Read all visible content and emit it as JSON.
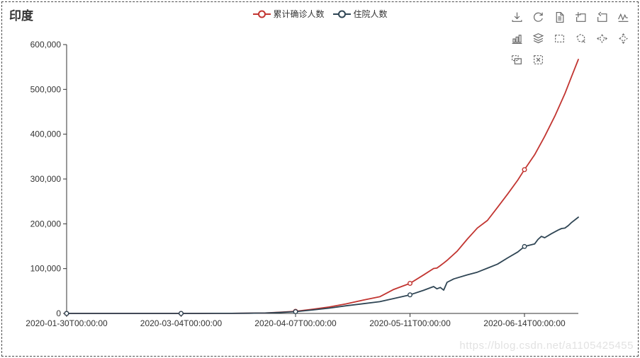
{
  "page": {
    "title": "印度",
    "watermark": "https://blog.csdn.net/a1105425455",
    "background": "#ffffff",
    "border_color": "#4a4a4a",
    "axis_color": "#333333",
    "label_color": "#333333"
  },
  "legend": {
    "items": [
      {
        "id": "confirmed",
        "label": "累计确诊人数",
        "color": "#c23531"
      },
      {
        "id": "hospitalized",
        "label": "住院人数",
        "color": "#2f4554"
      }
    ]
  },
  "toolbox": {
    "icon_color": "#666666",
    "rows": [
      [
        "save-image-icon",
        "restore-icon",
        "data-view-icon",
        "zoom-in-icon",
        "zoom-back-icon",
        "line-chart-icon"
      ],
      [
        "bar-chart-icon",
        "stack-icon",
        "brush-rect-icon",
        "brush-polygon-icon",
        "brush-linex-icon",
        "brush-liney-icon"
      ],
      [
        "brush-keep-icon",
        "brush-clear-icon"
      ]
    ]
  },
  "chart_data": {
    "type": "line",
    "title": "印度",
    "grid": false,
    "legend_position": "top-center",
    "x_axis": {
      "type": "time",
      "start_date": "2020-01-30T00:00:00",
      "tick_labels": [
        "2020-01-30T00:00:00",
        "2020-03-04T00:00:00",
        "2020-04-07T00:00:00",
        "2020-05-11T00:00:00",
        "2020-06-14T00:00:00"
      ],
      "tick_day_offsets": [
        0,
        34,
        68,
        102,
        136
      ],
      "total_days": 152
    },
    "y_axis": {
      "min": 0,
      "max": 600000,
      "interval": 100000,
      "tick_labels": [
        "0",
        "100,000",
        "200,000",
        "300,000",
        "400,000",
        "500,000",
        "600,000"
      ]
    },
    "series": [
      {
        "name": "累计确诊人数",
        "color": "#c23531",
        "marker_days": [
          0,
          34,
          68,
          102,
          136
        ],
        "points": [
          [
            0,
            1
          ],
          [
            10,
            3
          ],
          [
            20,
            3
          ],
          [
            30,
            3
          ],
          [
            34,
            28
          ],
          [
            39,
            44
          ],
          [
            44,
            102
          ],
          [
            49,
            194
          ],
          [
            54,
            536
          ],
          [
            59,
            1024
          ],
          [
            63,
            2543
          ],
          [
            68,
            4789
          ],
          [
            73,
            9205
          ],
          [
            78,
            14352
          ],
          [
            83,
            21370
          ],
          [
            88,
            29451
          ],
          [
            93,
            37257
          ],
          [
            97,
            52987
          ],
          [
            102,
            67152
          ],
          [
            106,
            85784
          ],
          [
            109,
            100340
          ],
          [
            110,
            101139
          ],
          [
            111,
            106750
          ],
          [
            112,
            112359
          ],
          [
            113,
            118447
          ],
          [
            116,
            138845
          ],
          [
            119,
            165799
          ],
          [
            122,
            190609
          ],
          [
            125,
            207615
          ],
          [
            128,
            236657
          ],
          [
            131,
            266598
          ],
          [
            134,
            297535
          ],
          [
            136,
            320922
          ],
          [
            139,
            354065
          ],
          [
            142,
            395048
          ],
          [
            145,
            440215
          ],
          [
            148,
            490401
          ],
          [
            150,
            528859
          ],
          [
            152,
            566840
          ]
        ]
      },
      {
        "name": "住院人数",
        "color": "#2f4554",
        "marker_days": [
          0,
          34,
          68,
          102,
          136
        ],
        "points": [
          [
            0,
            1
          ],
          [
            10,
            3
          ],
          [
            20,
            3
          ],
          [
            30,
            3
          ],
          [
            34,
            23
          ],
          [
            39,
            40
          ],
          [
            44,
            93
          ],
          [
            49,
            160
          ],
          [
            54,
            470
          ],
          [
            59,
            900
          ],
          [
            63,
            2100
          ],
          [
            68,
            4000
          ],
          [
            73,
            7700
          ],
          [
            78,
            11900
          ],
          [
            83,
            17000
          ],
          [
            88,
            21600
          ],
          [
            93,
            26200
          ],
          [
            97,
            33000
          ],
          [
            102,
            41500
          ],
          [
            106,
            51400
          ],
          [
            109,
            60000
          ],
          [
            110,
            55000
          ],
          [
            111,
            58000
          ],
          [
            112,
            52000
          ],
          [
            113,
            69500
          ],
          [
            115,
            77000
          ],
          [
            119,
            86000
          ],
          [
            122,
            92000
          ],
          [
            125,
            101000
          ],
          [
            128,
            110000
          ],
          [
            131,
            124000
          ],
          [
            134,
            137000
          ],
          [
            136,
            149348
          ],
          [
            139,
            155000
          ],
          [
            140,
            165000
          ],
          [
            141,
            172000
          ],
          [
            142,
            169000
          ],
          [
            144,
            178000
          ],
          [
            146,
            186000
          ],
          [
            147,
            189500
          ],
          [
            148,
            190500
          ],
          [
            149,
            196000
          ],
          [
            150,
            203000
          ],
          [
            152,
            214800
          ]
        ]
      }
    ]
  }
}
